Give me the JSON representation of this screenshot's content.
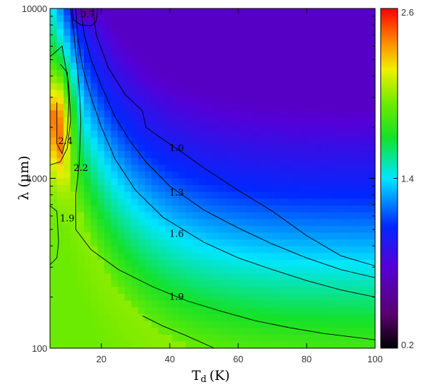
{
  "chart_data": {
    "type": "heatmap",
    "xlabel": "T",
    "xlabel_sub": "d",
    "xlabel_unit": "(K)",
    "ylabel": "λ (μm)",
    "x_range": [
      5,
      100
    ],
    "y_range": [
      100,
      10000
    ],
    "y_scale": "log",
    "x_ticks": [
      20,
      40,
      60,
      80,
      100
    ],
    "x_tick_labels": [
      "20",
      "40",
      "60",
      "80",
      "100"
    ],
    "y_ticks": [
      100,
      1000,
      10000
    ],
    "y_tick_labels": [
      "100",
      "1000",
      "10000"
    ],
    "colorbar": {
      "range": [
        0.2,
        2.6
      ],
      "ticks": [
        0.2,
        1.4,
        2.6
      ],
      "tick_labels": [
        "0.2",
        "1.4",
        "2.6"
      ],
      "palette": "rainbow (black-purple-blue-cyan-green-yellow-red)"
    },
    "contours": [
      {
        "level": 0.7,
        "label": "0.7",
        "points": [
          [
            11.5,
            10000
          ],
          [
            11.8,
            8600
          ],
          [
            14,
            8000
          ],
          [
            17,
            7900
          ],
          [
            18.5,
            8400
          ],
          [
            19,
            10000
          ]
        ]
      },
      {
        "level": 1.0,
        "label": "1.0",
        "points": [
          [
            17.5,
            10000
          ],
          [
            18.5,
            7000
          ],
          [
            22,
            4500
          ],
          [
            27,
            3100
          ],
          [
            32,
            2500
          ],
          [
            33,
            2000
          ],
          [
            37,
            1750
          ],
          [
            43,
            1450
          ],
          [
            50,
            1150
          ],
          [
            60,
            850
          ],
          [
            70,
            640
          ],
          [
            80,
            460
          ],
          [
            90,
            350
          ],
          [
            100,
            305
          ]
        ]
      },
      {
        "level": 1.3,
        "label": "1.3",
        "points": [
          [
            14,
            10000
          ],
          [
            15,
            7000
          ],
          [
            17,
            5000
          ],
          [
            20,
            3500
          ],
          [
            24,
            2300
          ],
          [
            28,
            1700
          ],
          [
            33,
            1250
          ],
          [
            40,
            900
          ],
          [
            50,
            650
          ],
          [
            60,
            510
          ],
          [
            70,
            410
          ],
          [
            80,
            340
          ],
          [
            90,
            290
          ],
          [
            100,
            260
          ]
        ]
      },
      {
        "level": 1.6,
        "label": "1.6",
        "points": [
          [
            12.5,
            10000
          ],
          [
            13,
            7000
          ],
          [
            14.5,
            4500
          ],
          [
            17,
            3000
          ],
          [
            20,
            2000
          ],
          [
            24,
            1300
          ],
          [
            30,
            850
          ],
          [
            38,
            590
          ],
          [
            50,
            420
          ],
          [
            60,
            340
          ],
          [
            70,
            290
          ],
          [
            80,
            250
          ],
          [
            90,
            220
          ],
          [
            100,
            200
          ]
        ]
      },
      {
        "level": 1.9,
        "label": "1.9",
        "points": [
          [
            11,
            10000
          ],
          [
            12,
            7000
          ],
          [
            13.5,
            3500
          ],
          [
            14,
            2200
          ],
          [
            13.5,
            1200
          ],
          [
            12.5,
            800
          ],
          [
            12.5,
            500
          ],
          [
            17,
            380
          ],
          [
            25,
            290
          ],
          [
            35,
            230
          ],
          [
            45,
            190
          ],
          [
            55,
            165
          ],
          [
            65,
            145
          ],
          [
            75,
            132
          ],
          [
            85,
            122
          ],
          [
            100,
            112
          ]
        ]
      },
      {
        "level": 1.9,
        "label": "1.9",
        "points": [
          [
            5,
            690
          ],
          [
            7,
            640
          ],
          [
            7.5,
            420
          ],
          [
            7,
            340
          ],
          [
            5,
            310
          ]
        ]
      },
      {
        "level": 2.2,
        "label": "2.2",
        "points": [
          [
            5,
            5200
          ],
          [
            8.5,
            6000
          ],
          [
            10.5,
            3500
          ],
          [
            11,
            2200
          ],
          [
            10,
            1500
          ],
          [
            8,
            1250
          ],
          [
            5,
            1200
          ]
        ]
      },
      {
        "level": 2.4,
        "label": "2.4",
        "points": [
          [
            8,
            4700
          ],
          [
            10,
            4200
          ],
          [
            10.5,
            2800
          ],
          [
            10,
            1800
          ],
          [
            8.5,
            1400
          ],
          [
            7,
            1600
          ],
          [
            7,
            2800
          ]
        ]
      },
      {
        "level": 1.9,
        "label": "",
        "points": [
          [
            53,
            100
          ],
          [
            45,
            118
          ],
          [
            38,
            135
          ],
          [
            32,
            155
          ]
        ]
      }
    ],
    "contour_labels": [
      {
        "label": "0.7",
        "x": 16,
        "y": 9200
      },
      {
        "label": "1.0",
        "x": 42,
        "y": 1500
      },
      {
        "label": "1.3",
        "x": 42,
        "y": 820
      },
      {
        "label": "1.6",
        "x": 42,
        "y": 470
      },
      {
        "label": "1.9",
        "x": 42,
        "y": 200
      },
      {
        "label": "2.4",
        "x": 9.5,
        "y": 1650
      },
      {
        "label": "2.2",
        "x": 14,
        "y": 1150
      },
      {
        "label": "1.9",
        "x": 10,
        "y": 580
      }
    ]
  }
}
